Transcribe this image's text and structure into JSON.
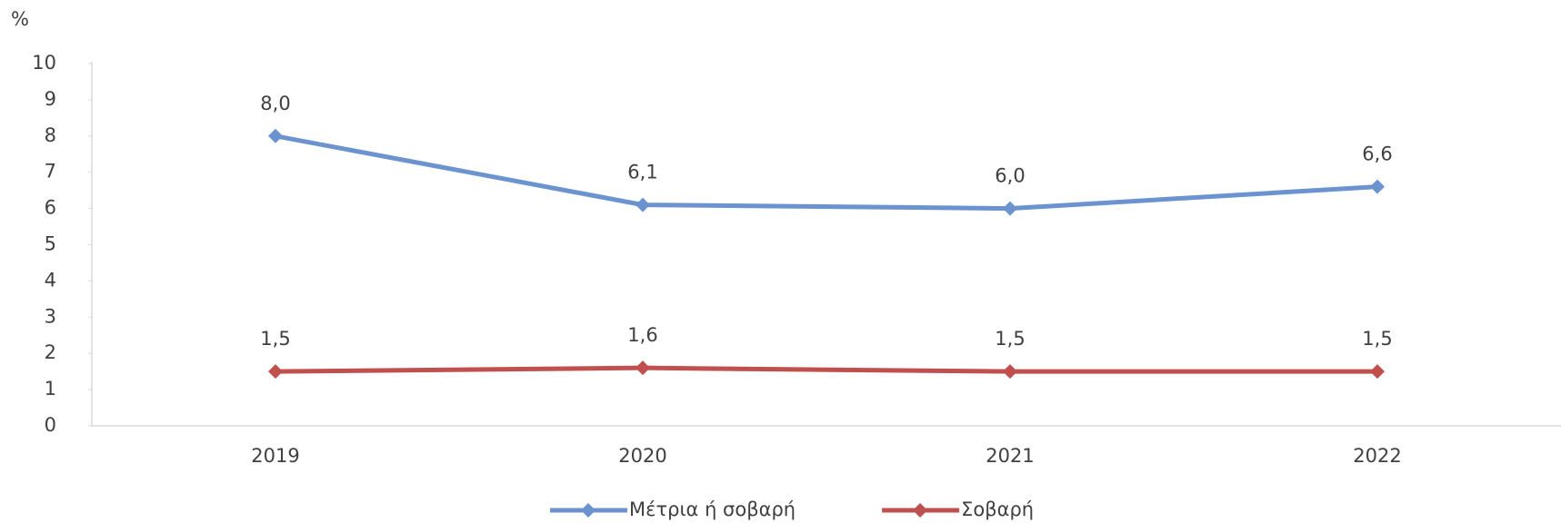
{
  "chart_data": {
    "type": "line",
    "y_label": "%",
    "categories": [
      "2019",
      "2020",
      "2021",
      "2022"
    ],
    "series": [
      {
        "name": "Μέτρια ή σοβαρή",
        "color": "#6a93d0",
        "values": [
          8.0,
          6.1,
          6.0,
          6.6
        ],
        "value_labels": [
          "8,0",
          "6,1",
          "6,0",
          "6,6"
        ]
      },
      {
        "name": "Σοβαρή",
        "color": "#c0504d",
        "values": [
          1.5,
          1.6,
          1.5,
          1.5
        ],
        "value_labels": [
          "1,5",
          "1,6",
          "1,5",
          "1,5"
        ]
      }
    ],
    "ylim": [
      0,
      10
    ],
    "yticks": [
      0,
      1,
      2,
      3,
      4,
      5,
      6,
      7,
      8,
      9,
      10
    ],
    "grid": false,
    "legend": "bottom"
  }
}
